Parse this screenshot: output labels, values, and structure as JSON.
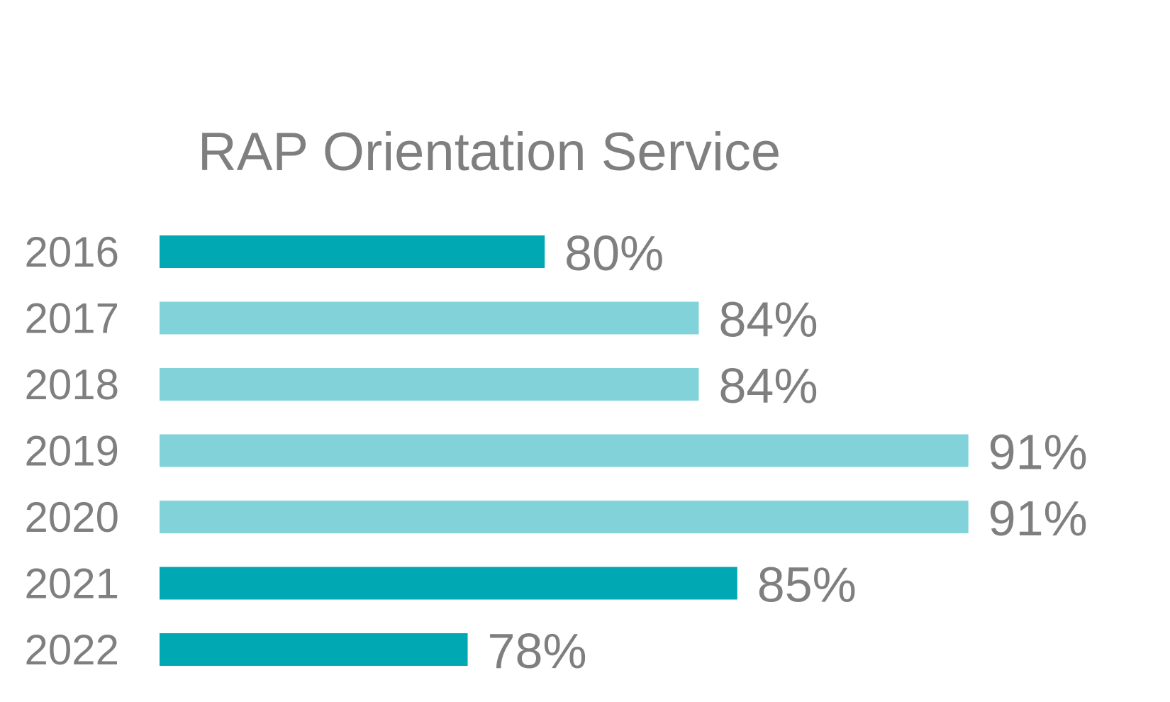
{
  "chart_data": {
    "type": "bar",
    "orientation": "horizontal",
    "title": "RAP Orientation Service",
    "xlabel": "",
    "ylabel": "",
    "categories": [
      "2016",
      "2017",
      "2018",
      "2019",
      "2020",
      "2021",
      "2022"
    ],
    "values": [
      80,
      84,
      84,
      91,
      91,
      85,
      78
    ],
    "value_labels": [
      "80%",
      "84%",
      "84%",
      "91%",
      "91%",
      "85%",
      "78%"
    ],
    "value_unit": "%",
    "highlighted": [
      true,
      false,
      false,
      false,
      false,
      true,
      true
    ],
    "xlim": [
      70,
      92
    ],
    "grid": false,
    "legend": "none",
    "colors": {
      "highlight": "#00a8b3",
      "normal": "#82d3d9",
      "text": "#7f7f7f"
    }
  }
}
